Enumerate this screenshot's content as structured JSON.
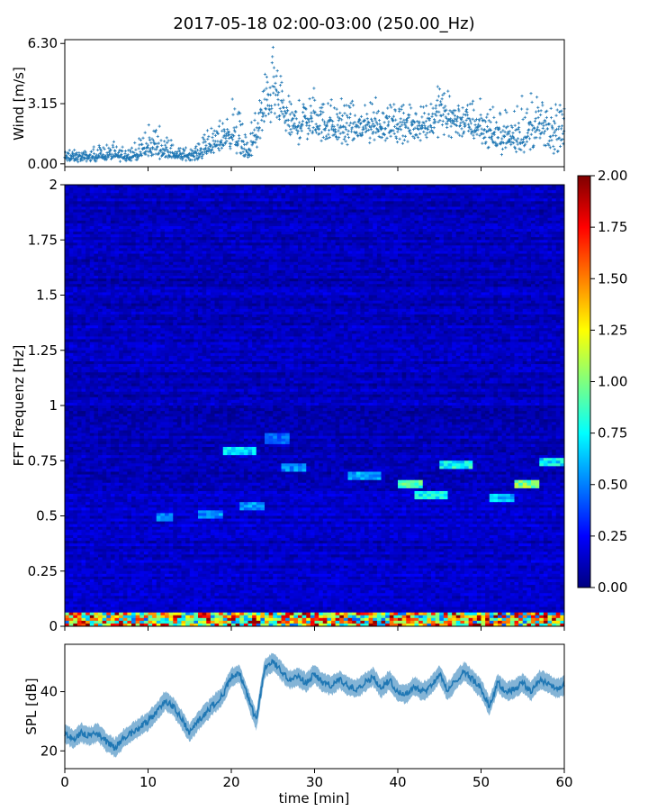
{
  "figure": {
    "title": "2017-05-18 02:00-03:00 (250.00_Hz)"
  },
  "colors": {
    "series": "#1f77b4",
    "colormap": "jet",
    "colormap_stops": [
      "#00007f",
      "#0000ff",
      "#007fff",
      "#00ffff",
      "#7fff7f",
      "#ffff00",
      "#ff7f00",
      "#ff0000",
      "#7f0000"
    ]
  },
  "chart_data": [
    {
      "type": "scatter",
      "name": "wind",
      "ylabel": "Wind [m/s]",
      "xlabel": "",
      "xlim": [
        0,
        60
      ],
      "ylim": [
        -0.15,
        6.5
      ],
      "y_ticks": [
        0.0,
        3.15,
        6.3
      ],
      "y_tick_labels": [
        "0.00",
        "3.15",
        "6.30"
      ],
      "x_ticks": [
        0,
        10,
        20,
        30,
        40,
        50,
        60
      ],
      "x_tick_labels": [],
      "marker": "+",
      "grid": false,
      "envelope": {
        "x": [
          0,
          3,
          5,
          7,
          9,
          10,
          11,
          12,
          14,
          16,
          17,
          18,
          19,
          20,
          21,
          22,
          23,
          24,
          25,
          26,
          27,
          28,
          29,
          30,
          32,
          34,
          36,
          38,
          40,
          42,
          44,
          45,
          46,
          48,
          50,
          52,
          54,
          56,
          57,
          58,
          60
        ],
        "mean": [
          0.3,
          0.35,
          0.45,
          0.4,
          0.5,
          0.7,
          0.9,
          0.6,
          0.4,
          0.5,
          0.8,
          1.0,
          1.3,
          1.6,
          1.0,
          0.5,
          1.5,
          2.8,
          4.0,
          2.8,
          2.2,
          1.9,
          2.4,
          2.2,
          2.0,
          1.8,
          1.9,
          2.0,
          2.1,
          1.9,
          2.2,
          2.8,
          2.4,
          2.2,
          1.9,
          1.4,
          1.3,
          1.6,
          2.0,
          1.6,
          1.5
        ],
        "max": [
          0.9,
          0.8,
          1.3,
          1.0,
          1.5,
          2.0,
          2.8,
          1.5,
          1.0,
          1.2,
          1.8,
          2.2,
          2.5,
          4.2,
          3.5,
          1.5,
          3.5,
          5.8,
          6.3,
          4.5,
          3.8,
          3.5,
          4.2,
          4.0,
          3.6,
          3.5,
          3.5,
          3.5,
          3.4,
          3.3,
          3.8,
          4.8,
          3.9,
          3.8,
          3.6,
          2.8,
          3.4,
          3.8,
          3.9,
          3.1,
          3.2
        ],
        "min": [
          0.0,
          0.05,
          0.1,
          0.05,
          0.1,
          0.2,
          0.2,
          0.15,
          0.1,
          0.1,
          0.2,
          0.3,
          0.5,
          0.5,
          0.2,
          0.05,
          0.4,
          1.0,
          1.5,
          1.2,
          0.8,
          0.7,
          0.9,
          0.8,
          0.6,
          0.5,
          0.7,
          0.8,
          0.8,
          0.8,
          0.9,
          1.2,
          1.0,
          0.9,
          0.7,
          0.4,
          0.3,
          0.4,
          0.5,
          0.2,
          0.4
        ]
      }
    },
    {
      "type": "heatmap",
      "name": "spectrogram",
      "ylabel": "FFT Frequenz [Hz]",
      "xlabel": "",
      "xlim": [
        0,
        60
      ],
      "ylim": [
        0,
        2
      ],
      "y_ticks": [
        0,
        0.25,
        0.5,
        0.75,
        1,
        1.25,
        1.5,
        1.75,
        2
      ],
      "y_tick_labels": [
        "0",
        "0.25",
        "0.5",
        "0.75",
        "1",
        "1.25",
        "1.5",
        "1.75",
        "2"
      ],
      "x_ticks": [
        0,
        10,
        20,
        30,
        40,
        50,
        60
      ],
      "x_tick_labels": [],
      "colorbar": {
        "vmin": 0.0,
        "vmax": 2.0,
        "ticks": [
          0.0,
          0.25,
          0.5,
          0.75,
          1.0,
          1.25,
          1.5,
          1.75,
          2.0
        ],
        "tick_labels": [
          "0.00",
          "0.25",
          "0.50",
          "0.75",
          "1.00",
          "1.25",
          "1.50",
          "1.75",
          "2.00"
        ]
      },
      "background_level": 0.12,
      "features": [
        {
          "kind": "low_freq_band",
          "freq": [
            0,
            0.06
          ],
          "level_min": 0.8,
          "level_max": 2.0
        },
        {
          "kind": "line",
          "t": [
            19,
            23
          ],
          "freq": 0.79,
          "level": 0.75
        },
        {
          "kind": "line",
          "t": [
            21,
            24
          ],
          "freq": 0.54,
          "level": 0.6
        },
        {
          "kind": "line",
          "t": [
            24,
            27
          ],
          "freq": 0.85,
          "level": 0.5
        },
        {
          "kind": "line",
          "t": [
            26,
            29
          ],
          "freq": 0.72,
          "level": 0.6
        },
        {
          "kind": "line",
          "t": [
            34,
            38
          ],
          "freq": 0.68,
          "level": 0.65
        },
        {
          "kind": "line",
          "t": [
            40,
            43
          ],
          "freq": 0.64,
          "level": 0.95
        },
        {
          "kind": "line",
          "t": [
            42,
            46
          ],
          "freq": 0.59,
          "level": 0.8
        },
        {
          "kind": "line",
          "t": [
            45,
            49
          ],
          "freq": 0.73,
          "level": 0.85
        },
        {
          "kind": "line",
          "t": [
            51,
            54
          ],
          "freq": 0.58,
          "level": 0.7
        },
        {
          "kind": "line",
          "t": [
            54,
            57
          ],
          "freq": 0.64,
          "level": 1.15
        },
        {
          "kind": "line",
          "t": [
            57,
            60
          ],
          "freq": 0.74,
          "level": 0.8
        },
        {
          "kind": "line",
          "t": [
            11,
            13
          ],
          "freq": 0.49,
          "level": 0.55
        },
        {
          "kind": "line",
          "t": [
            16,
            19
          ],
          "freq": 0.51,
          "level": 0.6
        }
      ]
    },
    {
      "type": "line",
      "name": "spl",
      "ylabel": "SPL [dB]",
      "xlabel": "time [min]",
      "xlim": [
        0,
        60
      ],
      "ylim": [
        14,
        56
      ],
      "y_ticks": [
        20,
        40
      ],
      "y_tick_labels": [
        "20",
        "40"
      ],
      "x_ticks": [
        0,
        10,
        20,
        30,
        40,
        50,
        60
      ],
      "x_tick_labels": [
        "0",
        "10",
        "20",
        "30",
        "40",
        "50",
        "60"
      ],
      "grid": false,
      "x": [
        0,
        1,
        2,
        3,
        4,
        5,
        6,
        7,
        8,
        9,
        10,
        11,
        12,
        13,
        14,
        15,
        16,
        17,
        18,
        19,
        20,
        21,
        22,
        23,
        24,
        25,
        26,
        27,
        28,
        29,
        30,
        31,
        32,
        33,
        34,
        35,
        36,
        37,
        38,
        39,
        40,
        41,
        42,
        43,
        44,
        45,
        46,
        47,
        48,
        49,
        50,
        51,
        52,
        53,
        54,
        55,
        56,
        57,
        58,
        59,
        60
      ],
      "y": [
        26,
        24,
        26,
        25,
        26,
        23,
        21,
        24,
        26,
        28,
        30,
        33,
        37,
        35,
        31,
        26,
        30,
        33,
        36,
        39,
        45,
        46,
        38,
        30,
        48,
        50,
        47,
        44,
        45,
        43,
        46,
        43,
        42,
        44,
        42,
        41,
        43,
        45,
        41,
        44,
        40,
        39,
        42,
        40,
        42,
        46,
        40,
        44,
        47,
        44,
        41,
        35,
        43,
        40,
        41,
        43,
        40,
        44,
        43,
        41,
        42
      ],
      "band": 2.5
    }
  ]
}
